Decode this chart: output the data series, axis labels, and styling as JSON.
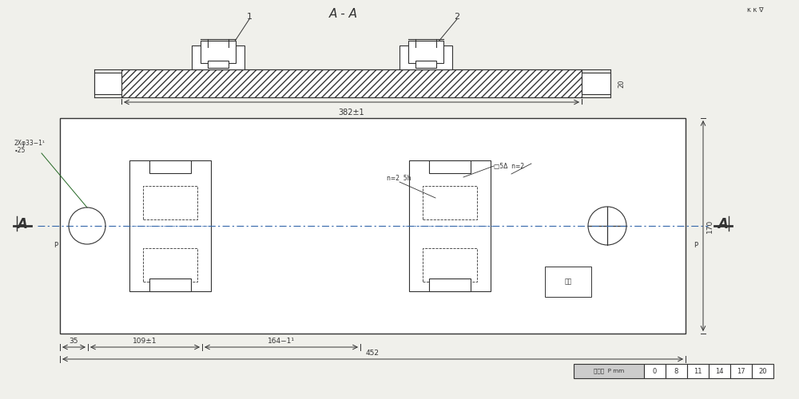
{
  "bg_color": "#f0f0eb",
  "line_color": "#333333",
  "title_section": "A - A",
  "label1": "1",
  "label2": "2",
  "dim_382": "382±1",
  "dim_452": "452",
  "dim_109": "109±1",
  "dim_164": "164−1¹",
  "dim_35": "35",
  "dim_170": "170",
  "dim_20": "20",
  "label_A": "A",
  "hole_label_line1": "2Xφ33−1¹",
  "hole_label_line2": "∙25",
  "chamfer_label1": "n=2  5h",
  "chamfer_label2": "□5Δ  n=2",
  "table_header": "粗糙度  P mm",
  "table_values": [
    "0",
    "8",
    "11",
    "14",
    "17",
    "20"
  ],
  "small_label_line1": "标记",
  "figsize": [
    10.0,
    5.0
  ],
  "dpi": 100
}
